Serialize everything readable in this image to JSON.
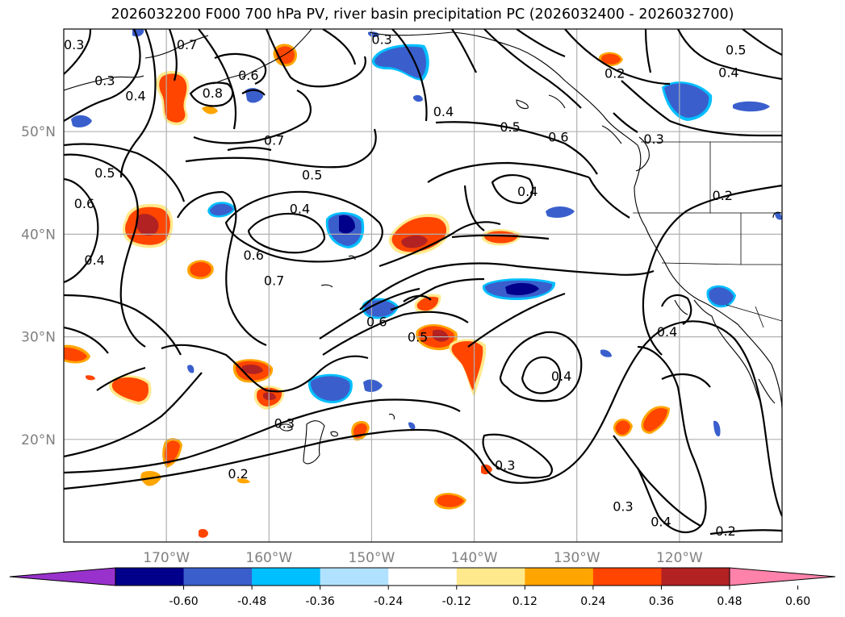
{
  "title": "2026032200 F000 700 hPa PV, river basin precipitation PC (2026032400 - 2026032700)",
  "lat_labels": [
    {
      "lat": 50,
      "text": "50°N"
    },
    {
      "lat": 40,
      "text": "40°N"
    },
    {
      "lat": 30,
      "text": "30°N"
    },
    {
      "lat": 20,
      "text": "20°N"
    }
  ],
  "lon_labels": [
    {
      "lon": -170,
      "text": "170°W"
    },
    {
      "lon": -160,
      "text": "160°W"
    },
    {
      "lon": -150,
      "text": "150°W"
    },
    {
      "lon": -140,
      "text": "140°W"
    },
    {
      "lon": -130,
      "text": "130°W"
    },
    {
      "lon": -120,
      "text": "120°W"
    }
  ],
  "extent": {
    "lon_min": -180,
    "lon_max": -110,
    "lat_min": 10,
    "lat_max": 60
  },
  "colorbar": {
    "colors": [
      "#9932cc",
      "#00008b",
      "#3a5fcd",
      "#00bfff",
      "#b0e2ff",
      "#ffffff",
      "#ffe98c",
      "#ffa500",
      "#ff4500",
      "#b22222",
      "#ff82ab"
    ],
    "ticks": [
      "-0.60",
      "-0.48",
      "-0.36",
      "-0.24",
      "-0.12",
      "0.12",
      "0.24",
      "0.36",
      "0.48",
      "0.60"
    ]
  },
  "contour_labels": [
    {
      "lon": -179,
      "lat": 58.5,
      "text": "0.3"
    },
    {
      "lon": -176,
      "lat": 55,
      "text": "0.3"
    },
    {
      "lon": -173,
      "lat": 53.5,
      "text": "0.4"
    },
    {
      "lon": -168,
      "lat": 58.5,
      "text": "0.7"
    },
    {
      "lon": -165.5,
      "lat": 53.8,
      "text": "0.8"
    },
    {
      "lon": -162,
      "lat": 55.5,
      "text": "0.6"
    },
    {
      "lon": -159.5,
      "lat": 49.2,
      "text": "0.7"
    },
    {
      "lon": -176,
      "lat": 46,
      "text": "0.5"
    },
    {
      "lon": -178,
      "lat": 43,
      "text": "0.6"
    },
    {
      "lon": -177,
      "lat": 37.5,
      "text": "0.4"
    },
    {
      "lon": -161.5,
      "lat": 38,
      "text": "0.6"
    },
    {
      "lon": -159.5,
      "lat": 35.5,
      "text": "0.7"
    },
    {
      "lon": -155.8,
      "lat": 45.8,
      "text": "0.5"
    },
    {
      "lon": -157,
      "lat": 42.5,
      "text": "0.4"
    },
    {
      "lon": -149.5,
      "lat": 31.5,
      "text": "0.6"
    },
    {
      "lon": -145.5,
      "lat": 30,
      "text": "0.5"
    },
    {
      "lon": -149,
      "lat": 59,
      "text": "0.3"
    },
    {
      "lon": -143,
      "lat": 52,
      "text": "0.4"
    },
    {
      "lon": -136.5,
      "lat": 50.5,
      "text": "0.5"
    },
    {
      "lon": -131.8,
      "lat": 49.5,
      "text": "0.6"
    },
    {
      "lon": -134.8,
      "lat": 44.2,
      "text": "0.4"
    },
    {
      "lon": -126.3,
      "lat": 55.7,
      "text": "0.2"
    },
    {
      "lon": -122.5,
      "lat": 49.3,
      "text": "0.3"
    },
    {
      "lon": -114.5,
      "lat": 58,
      "text": "0.5"
    },
    {
      "lon": -115.2,
      "lat": 55.8,
      "text": "0.4"
    },
    {
      "lon": -115.8,
      "lat": 43.8,
      "text": "0.2"
    },
    {
      "lon": -121.2,
      "lat": 30.5,
      "text": "0.4"
    },
    {
      "lon": -158.5,
      "lat": 21.6,
      "text": "0.3"
    },
    {
      "lon": -163,
      "lat": 16.7,
      "text": "0.2"
    },
    {
      "lon": -137,
      "lat": 17.5,
      "text": "0.3"
    },
    {
      "lon": -131.5,
      "lat": 26.2,
      "text": "0.4"
    },
    {
      "lon": -125.5,
      "lat": 13.5,
      "text": "0.3"
    },
    {
      "lon": -121.8,
      "lat": 12,
      "text": "0.4"
    },
    {
      "lon": -115.5,
      "lat": 11.1,
      "text": "0.2"
    }
  ]
}
